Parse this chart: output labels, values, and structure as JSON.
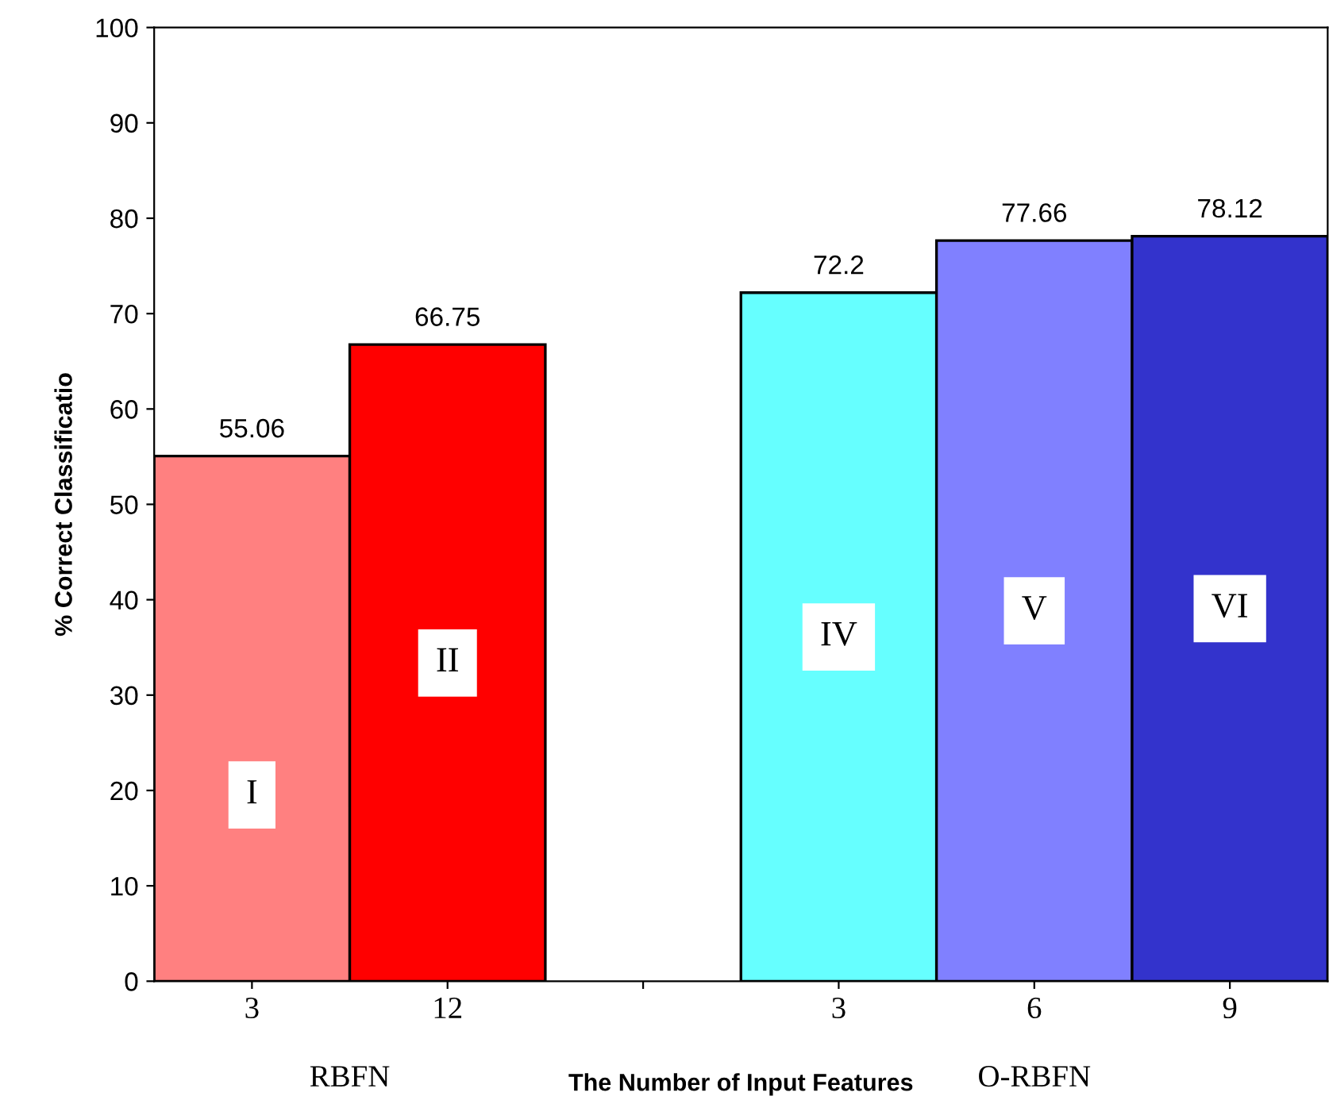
{
  "chart_data": {
    "type": "bar",
    "xlabel": "The Number of Input Features",
    "ylabel": "% Correct Classificatio",
    "categories": [
      "3",
      "12",
      null,
      "3",
      "6",
      "9"
    ],
    "values": [
      55.06,
      66.75,
      null,
      72.2,
      77.66,
      78.12
    ],
    "colors": [
      "#ff8080",
      "#ff0000",
      "#ffffff",
      "#66ffff",
      "#8080ff",
      "#3333cc"
    ],
    "ylim": [
      0,
      100
    ],
    "yticks": [
      0,
      10,
      20,
      30,
      40,
      50,
      60,
      70,
      80,
      90,
      100
    ],
    "data_labels": true,
    "grid": false,
    "annotations": [
      "I",
      "II",
      "IV",
      "V",
      "VI",
      "RBFN",
      "O-RBFN"
    ]
  }
}
